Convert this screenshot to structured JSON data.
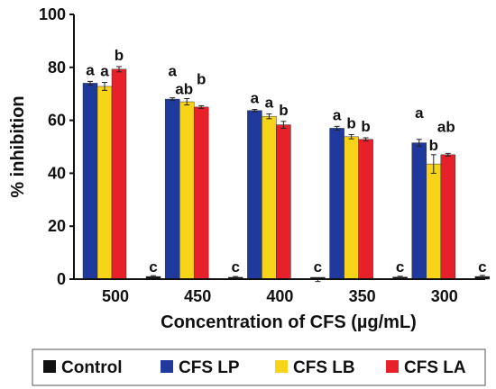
{
  "chart_data": {
    "type": "bar",
    "xlabel": "Concentration of CFS (µg/mL)",
    "ylabel": "% inhibition",
    "ylim": [
      0,
      100
    ],
    "yticks": [
      0,
      20,
      40,
      60,
      80,
      100
    ],
    "categories": [
      "500",
      "450",
      "400",
      "350",
      "300"
    ],
    "grid": false,
    "legend_position": "bottom",
    "series": [
      {
        "name": "CFS LP",
        "color": "#1f3a9c",
        "values": [
          74,
          68,
          63.7,
          57,
          51.5
        ],
        "errors": [
          0.7,
          0.5,
          0.4,
          0.7,
          1.3
        ],
        "labels": [
          "a",
          "a",
          "a",
          "a",
          "a"
        ]
      },
      {
        "name": "CFS LB",
        "color": "#f7d417",
        "values": [
          72.8,
          67,
          61.5,
          53.8,
          43.5
        ],
        "errors": [
          1.5,
          1.2,
          0.9,
          0.8,
          3.5
        ],
        "labels": [
          "a",
          "ab",
          "a",
          "b",
          "b"
        ]
      },
      {
        "name": "CFS LA",
        "color": "#e8202a",
        "values": [
          79.3,
          65,
          58.3,
          52.8,
          47
        ],
        "errors": [
          1.0,
          0.5,
          1.3,
          0.6,
          0.5
        ],
        "labels": [
          "b",
          "b",
          "b",
          "b",
          "ab"
        ]
      },
      {
        "name": "Control",
        "color": "#111111",
        "values": [
          1.0,
          0.7,
          -0.3,
          0.8,
          1.0
        ],
        "errors": [
          0.3,
          0.3,
          0.6,
          0.3,
          0.4
        ],
        "labels": [
          "c",
          "c",
          "c",
          "c",
          "c"
        ]
      }
    ],
    "legend_order": [
      "Control",
      "CFS LP",
      "CFS LB",
      "CFS LA"
    ]
  }
}
